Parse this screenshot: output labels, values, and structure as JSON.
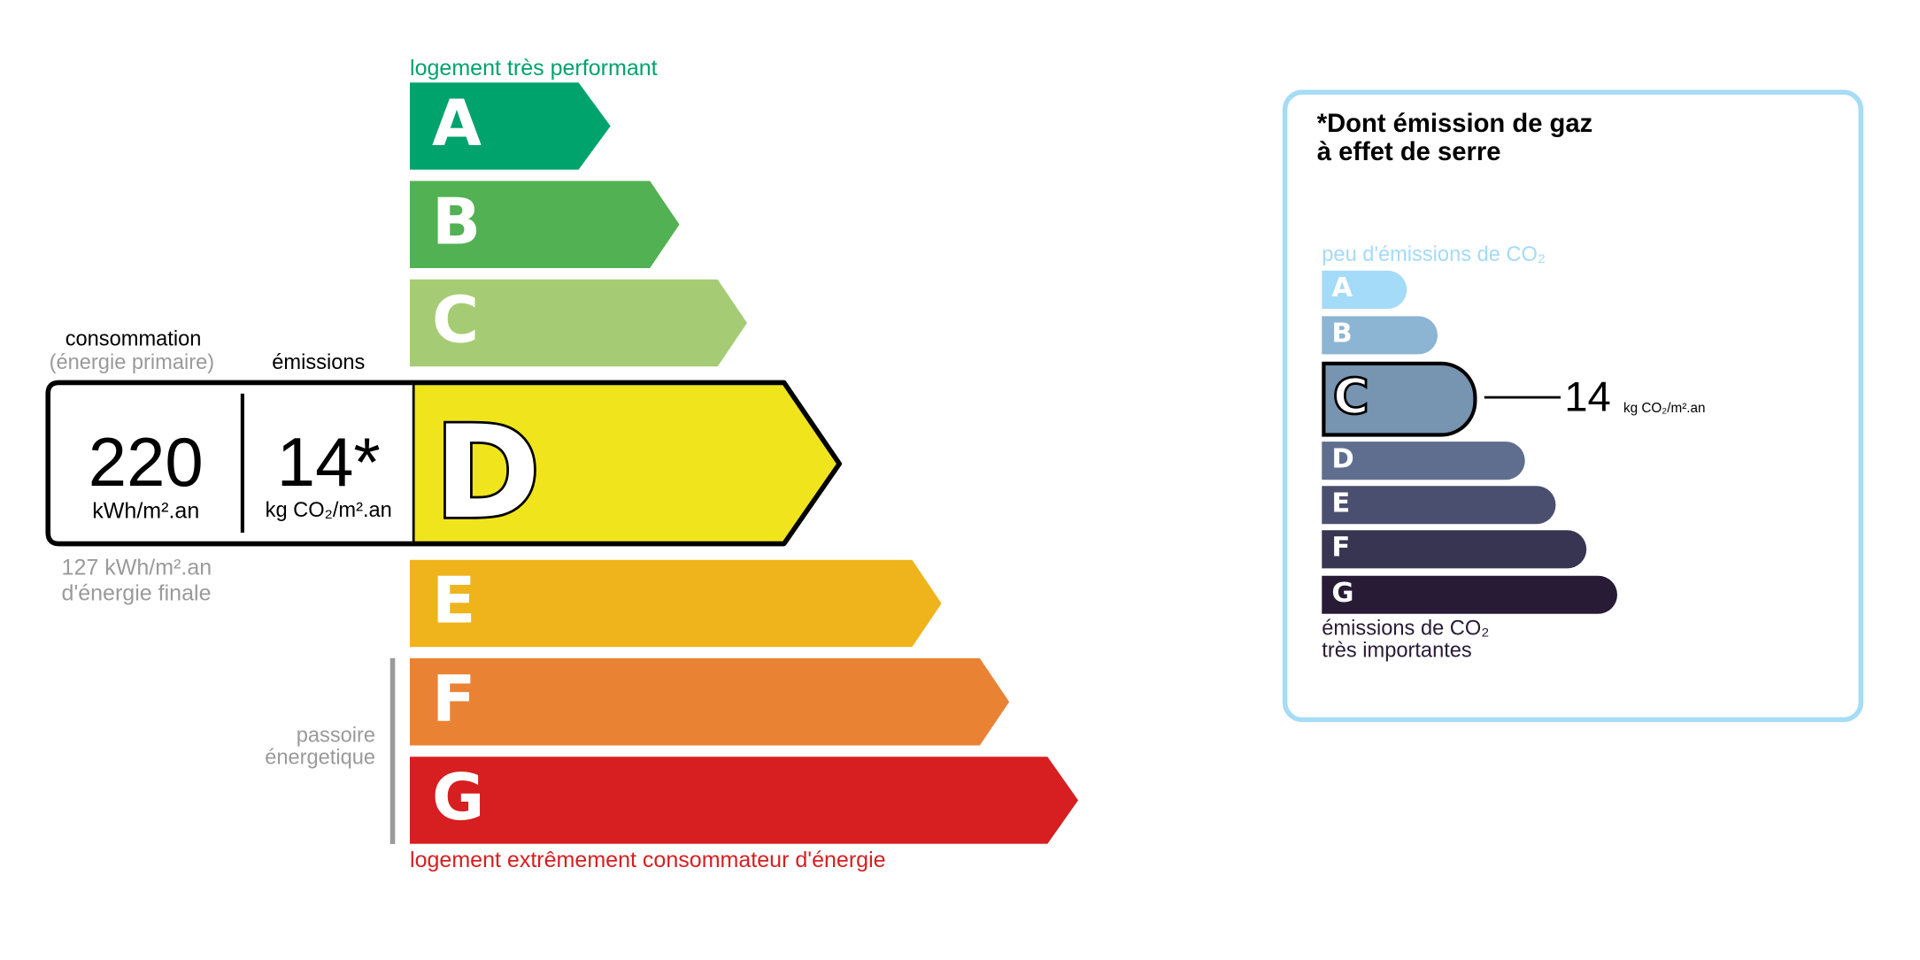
{
  "energy": {
    "top_label": "logement très performant",
    "bottom_label": "logement extrêmement consommateur d'énergie",
    "passoire_label_1": "passoire",
    "passoire_label_2": "énergetique",
    "classes": [
      {
        "letter": "A",
        "color": "#00a36c"
      },
      {
        "letter": "B",
        "color": "#52b153"
      },
      {
        "letter": "C",
        "color": "#a5cc74"
      },
      {
        "letter": "D",
        "color": "#f0e51c"
      },
      {
        "letter": "E",
        "color": "#efb31b"
      },
      {
        "letter": "F",
        "color": "#ea8234"
      },
      {
        "letter": "G",
        "color": "#d71e20"
      }
    ],
    "current_class": "D",
    "consumption_label": "consommation",
    "consumption_sublabel": "(énergie primaire)",
    "emissions_label": "émissions",
    "consumption_value": "220",
    "consumption_unit": "kWh/m².an",
    "emissions_value": "14*",
    "emissions_unit": "kg CO₂/m².an",
    "final_energy_1": "127 kWh/m².an",
    "final_energy_2": "d'énergie finale",
    "top_color": "#00a36c",
    "bottom_color": "#d71e20"
  },
  "ghg": {
    "title_1": "*Dont émission de gaz",
    "title_2": "à effet de serre",
    "top_label": "peu d'émissions de CO₂",
    "bottom_label_1": "émissions de CO₂",
    "bottom_label_2": "très importantes",
    "classes": [
      {
        "letter": "A",
        "color": "#a4dbf8"
      },
      {
        "letter": "B",
        "color": "#8cb4d3"
      },
      {
        "letter": "C",
        "color": "#7794b1"
      },
      {
        "letter": "D",
        "color": "#5f6e8e"
      },
      {
        "letter": "E",
        "color": "#4b4f6f"
      },
      {
        "letter": "F",
        "color": "#373551"
      },
      {
        "letter": "G",
        "color": "#281b35"
      }
    ],
    "current_class": "C",
    "value": "14",
    "unit": "kg CO₂/m².an",
    "border_color": "#a6dcf5"
  }
}
